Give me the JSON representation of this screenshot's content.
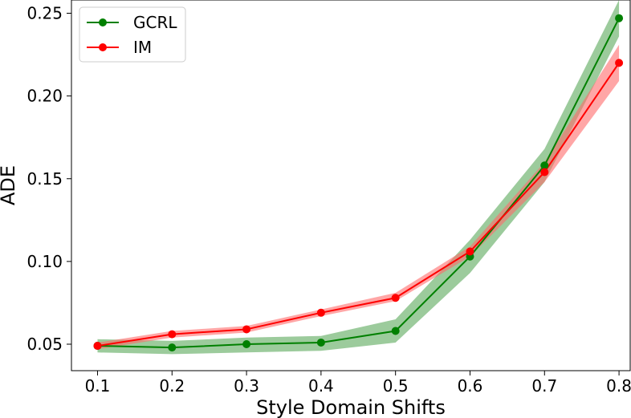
{
  "chart_data": {
    "type": "line",
    "title": "",
    "xlabel": "Style Domain Shifts",
    "ylabel": "ADE",
    "x": [
      0.1,
      0.2,
      0.3,
      0.4,
      0.5,
      0.6,
      0.7,
      0.8
    ],
    "x_ticks": [
      "0.1",
      "0.2",
      "0.3",
      "0.4",
      "0.5",
      "0.6",
      "0.7",
      "0.8"
    ],
    "y_ticks": [
      "0.05",
      "0.10",
      "0.15",
      "0.20",
      "0.25"
    ],
    "y_tick_values": [
      0.05,
      0.1,
      0.15,
      0.2,
      0.25
    ],
    "xlim": [
      0.065,
      0.815
    ],
    "ylim": [
      0.034,
      0.258
    ],
    "grid": false,
    "legend_position": "top-left",
    "series": [
      {
        "name": "GCRL",
        "color": "#008000",
        "band_color": "#5aa85a",
        "values": [
          0.049,
          0.048,
          0.05,
          0.051,
          0.058,
          0.103,
          0.158,
          0.247
        ],
        "lower": [
          0.045,
          0.044,
          0.045,
          0.046,
          0.051,
          0.093,
          0.148,
          0.236
        ],
        "upper": [
          0.053,
          0.052,
          0.054,
          0.055,
          0.065,
          0.113,
          0.168,
          0.258
        ]
      },
      {
        "name": "IM",
        "color": "#ff0000",
        "band_color": "#ff6a6a",
        "values": [
          0.049,
          0.056,
          0.059,
          0.069,
          0.078,
          0.106,
          0.154,
          0.22
        ],
        "lower": [
          0.047,
          0.054,
          0.057,
          0.067,
          0.076,
          0.103,
          0.148,
          0.209
        ],
        "upper": [
          0.051,
          0.058,
          0.061,
          0.071,
          0.081,
          0.109,
          0.16,
          0.231
        ]
      }
    ]
  }
}
